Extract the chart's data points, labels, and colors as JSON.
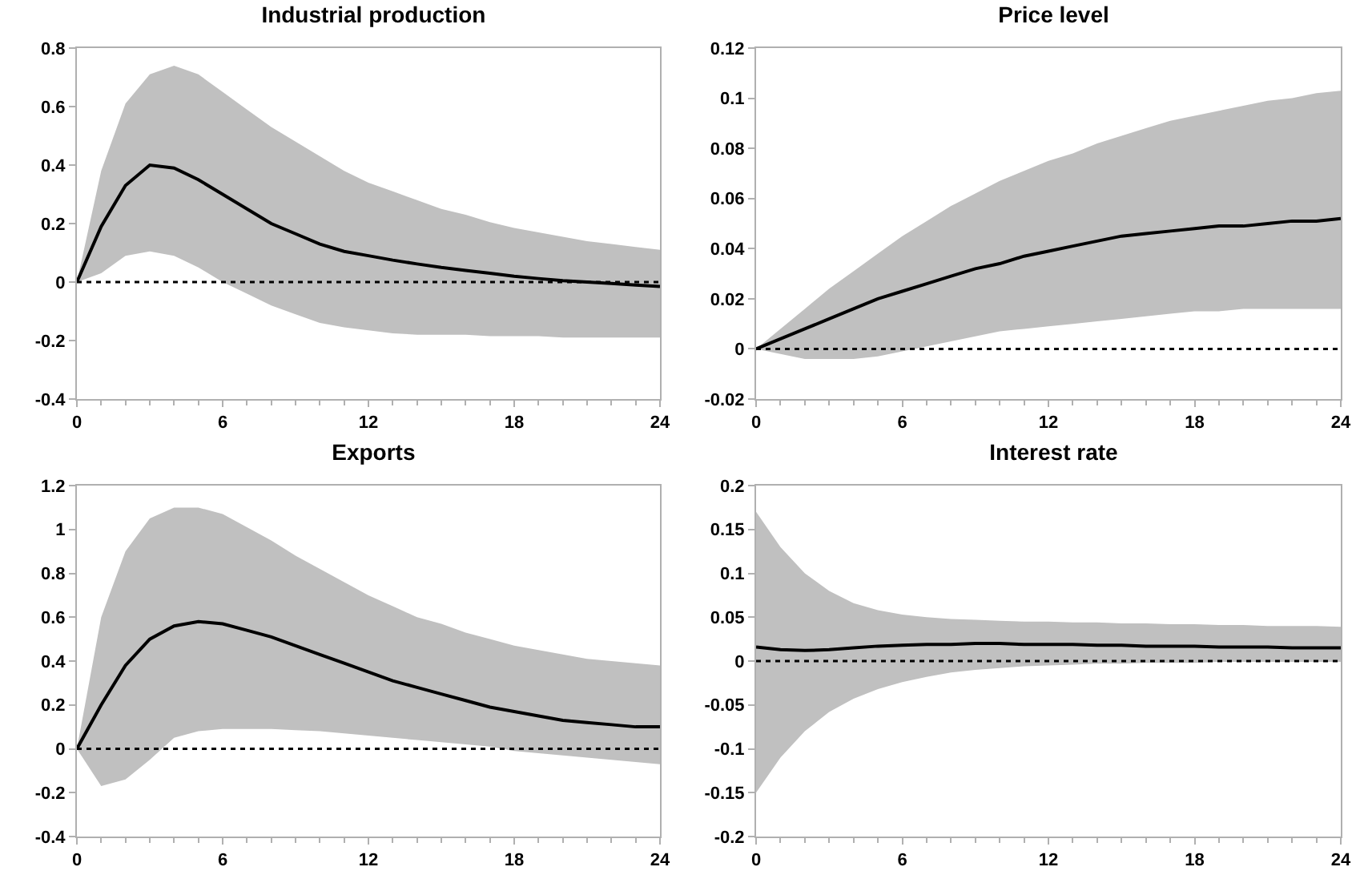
{
  "chart_data": [
    {
      "type": "line",
      "title": "Industrial production",
      "x": [
        0,
        1,
        2,
        3,
        4,
        5,
        6,
        7,
        8,
        9,
        10,
        11,
        12,
        13,
        14,
        15,
        16,
        17,
        18,
        19,
        20,
        21,
        22,
        23,
        24
      ],
      "xlim": [
        0,
        24
      ],
      "xticks": [
        0,
        6,
        12,
        18,
        24
      ],
      "ylim": [
        -0.4,
        0.8
      ],
      "yticks": [
        -0.4,
        -0.2,
        0,
        0.2,
        0.4,
        0.6,
        0.8
      ],
      "grid": false,
      "line_style": "solid",
      "series": [
        {
          "color": "#000000",
          "values": [
            0,
            0.19,
            0.33,
            0.4,
            0.39,
            0.35,
            0.3,
            0.25,
            0.2,
            0.165,
            0.13,
            0.105,
            0.09,
            0.075,
            0.062,
            0.05,
            0.04,
            0.03,
            0.02,
            0.012,
            0.005,
            0,
            -0.005,
            -0.01,
            -0.015
          ],
          "upper": [
            0,
            0.38,
            0.61,
            0.71,
            0.74,
            0.71,
            0.65,
            0.59,
            0.53,
            0.48,
            0.43,
            0.38,
            0.34,
            0.31,
            0.28,
            0.25,
            0.23,
            0.205,
            0.185,
            0.17,
            0.155,
            0.14,
            0.13,
            0.12,
            0.11
          ],
          "lower": [
            0,
            0.03,
            0.09,
            0.105,
            0.09,
            0.05,
            0,
            -0.04,
            -0.08,
            -0.11,
            -0.14,
            -0.155,
            -0.165,
            -0.175,
            -0.18,
            -0.18,
            -0.18,
            -0.185,
            -0.185,
            -0.185,
            -0.19,
            -0.19,
            -0.19,
            -0.19,
            -0.19
          ]
        }
      ],
      "ref_lines": [
        {
          "axis": "y",
          "value": 0,
          "color": "#000000",
          "line_style": "dotted"
        }
      ]
    },
    {
      "type": "line",
      "title": "Price level",
      "x": [
        0,
        1,
        2,
        3,
        4,
        5,
        6,
        7,
        8,
        9,
        10,
        11,
        12,
        13,
        14,
        15,
        16,
        17,
        18,
        19,
        20,
        21,
        22,
        23,
        24
      ],
      "xlim": [
        0,
        24
      ],
      "xticks": [
        0,
        6,
        12,
        18,
        24
      ],
      "ylim": [
        -0.02,
        0.12
      ],
      "yticks": [
        -0.02,
        0,
        0.02,
        0.04,
        0.06,
        0.08,
        0.1,
        0.12
      ],
      "grid": false,
      "line_style": "solid",
      "series": [
        {
          "color": "#000000",
          "values": [
            0,
            0.004,
            0.008,
            0.012,
            0.016,
            0.02,
            0.023,
            0.026,
            0.029,
            0.032,
            0.034,
            0.037,
            0.039,
            0.041,
            0.043,
            0.045,
            0.046,
            0.047,
            0.048,
            0.049,
            0.049,
            0.05,
            0.051,
            0.051,
            0.052
          ],
          "upper": [
            0,
            0.008,
            0.016,
            0.024,
            0.031,
            0.038,
            0.045,
            0.051,
            0.057,
            0.062,
            0.067,
            0.071,
            0.075,
            0.078,
            0.082,
            0.085,
            0.088,
            0.091,
            0.093,
            0.095,
            0.097,
            0.099,
            0.1,
            0.102,
            0.103
          ],
          "lower": [
            0,
            -0.002,
            -0.004,
            -0.004,
            -0.004,
            -0.003,
            -0.001,
            0.001,
            0.003,
            0.005,
            0.007,
            0.008,
            0.009,
            0.01,
            0.011,
            0.012,
            0.013,
            0.014,
            0.015,
            0.015,
            0.016,
            0.016,
            0.016,
            0.016,
            0.016
          ]
        }
      ],
      "ref_lines": [
        {
          "axis": "y",
          "value": 0,
          "color": "#000000",
          "line_style": "dotted"
        }
      ]
    },
    {
      "type": "line",
      "title": "Exports",
      "x": [
        0,
        1,
        2,
        3,
        4,
        5,
        6,
        7,
        8,
        9,
        10,
        11,
        12,
        13,
        14,
        15,
        16,
        17,
        18,
        19,
        20,
        21,
        22,
        23,
        24
      ],
      "xlim": [
        0,
        24
      ],
      "xticks": [
        0,
        6,
        12,
        18,
        24
      ],
      "ylim": [
        -0.4,
        1.2
      ],
      "yticks": [
        -0.4,
        -0.2,
        0,
        0.2,
        0.4,
        0.6,
        0.8,
        1,
        1.2
      ],
      "grid": false,
      "line_style": "solid",
      "series": [
        {
          "color": "#000000",
          "values": [
            0,
            0.2,
            0.38,
            0.5,
            0.56,
            0.58,
            0.57,
            0.54,
            0.51,
            0.47,
            0.43,
            0.39,
            0.35,
            0.31,
            0.28,
            0.25,
            0.22,
            0.19,
            0.17,
            0.15,
            0.13,
            0.12,
            0.11,
            0.1,
            0.1
          ],
          "upper": [
            0,
            0.6,
            0.9,
            1.05,
            1.1,
            1.1,
            1.07,
            1.01,
            0.95,
            0.88,
            0.82,
            0.76,
            0.7,
            0.65,
            0.6,
            0.57,
            0.53,
            0.5,
            0.47,
            0.45,
            0.43,
            0.41,
            0.4,
            0.39,
            0.38
          ],
          "lower": [
            0,
            -0.17,
            -0.14,
            -0.05,
            0.05,
            0.08,
            0.09,
            0.09,
            0.09,
            0.085,
            0.08,
            0.07,
            0.06,
            0.05,
            0.04,
            0.03,
            0.02,
            0.01,
            -0.01,
            -0.02,
            -0.03,
            -0.04,
            -0.05,
            -0.06,
            -0.07
          ]
        }
      ],
      "ref_lines": [
        {
          "axis": "y",
          "value": 0,
          "color": "#000000",
          "line_style": "dotted"
        }
      ]
    },
    {
      "type": "line",
      "title": "Interest rate",
      "x": [
        0,
        1,
        2,
        3,
        4,
        5,
        6,
        7,
        8,
        9,
        10,
        11,
        12,
        13,
        14,
        15,
        16,
        17,
        18,
        19,
        20,
        21,
        22,
        23,
        24
      ],
      "xlim": [
        0,
        24
      ],
      "xticks": [
        0,
        6,
        12,
        18,
        24
      ],
      "ylim": [
        -0.2,
        0.2
      ],
      "yticks": [
        -0.2,
        -0.15,
        -0.1,
        -0.05,
        0,
        0.05,
        0.1,
        0.15,
        0.2
      ],
      "grid": false,
      "line_style": "solid",
      "series": [
        {
          "color": "#000000",
          "values": [
            0.016,
            0.013,
            0.012,
            0.013,
            0.015,
            0.017,
            0.018,
            0.019,
            0.019,
            0.02,
            0.02,
            0.019,
            0.019,
            0.019,
            0.018,
            0.018,
            0.017,
            0.017,
            0.017,
            0.016,
            0.016,
            0.016,
            0.015,
            0.015,
            0.015
          ],
          "upper": [
            0.17,
            0.13,
            0.1,
            0.08,
            0.066,
            0.058,
            0.053,
            0.05,
            0.048,
            0.047,
            0.046,
            0.045,
            0.045,
            0.044,
            0.044,
            0.043,
            0.043,
            0.042,
            0.042,
            0.041,
            0.041,
            0.04,
            0.04,
            0.04,
            0.039
          ],
          "lower": [
            -0.15,
            -0.11,
            -0.08,
            -0.058,
            -0.043,
            -0.032,
            -0.024,
            -0.018,
            -0.013,
            -0.01,
            -0.008,
            -0.006,
            -0.005,
            -0.004,
            -0.003,
            -0.003,
            -0.002,
            -0.002,
            -0.002,
            -0.001,
            -0.001,
            -0.001,
            -0.001,
            -0.001,
            -0.001
          ]
        }
      ],
      "ref_lines": [
        {
          "axis": "y",
          "value": 0,
          "color": "#000000",
          "line_style": "dotted"
        }
      ]
    }
  ]
}
